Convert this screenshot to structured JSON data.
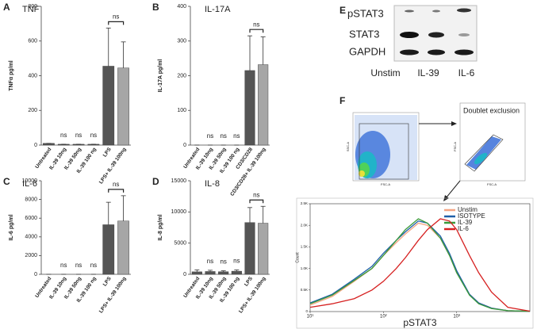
{
  "chart_data": [
    {
      "type": "bar",
      "panel": "A",
      "title": "TNF",
      "y_label": "TNFα pg/ml",
      "categories": [
        "Untreated",
        "IL-39 10ng",
        "IL-39 50ng",
        "IL-39 100 ng",
        "LPS",
        "LPS+ IL-39 100ng"
      ],
      "values": [
        10,
        5,
        5,
        5,
        455,
        445
      ],
      "errors": [
        0,
        0,
        0,
        0,
        220,
        150
      ],
      "colors": [
        "#555555",
        "#555555",
        "#555555",
        "#555555",
        "#555555",
        "#a6a6a6"
      ],
      "ylim": [
        0,
        800
      ],
      "yticks": [
        0,
        200,
        400,
        600,
        800
      ],
      "annotations": [
        {
          "text": "ns",
          "category": "IL-39 10ng"
        },
        {
          "text": "ns",
          "category": "IL-39 50ng"
        },
        {
          "text": "ns",
          "category": "IL-39 100 ng"
        },
        {
          "text": "ns",
          "between": [
            "LPS",
            "LPS+ IL-39 100ng"
          ]
        }
      ]
    },
    {
      "type": "bar",
      "panel": "B",
      "title": "IL-17A",
      "y_label": "IL-17A pg/ml",
      "categories": [
        "Untreated",
        "IL-39 10ng",
        "IL-39 50ng",
        "IL-39 100 ng",
        "CD3/CD28",
        "CD3/CD28+ IL-39 100ng"
      ],
      "values": [
        0,
        0,
        0,
        0,
        215,
        232
      ],
      "errors": [
        0,
        0,
        0,
        0,
        100,
        80
      ],
      "colors": [
        "#555555",
        "#555555",
        "#555555",
        "#555555",
        "#555555",
        "#a6a6a6"
      ],
      "ylim": [
        0,
        400
      ],
      "yticks": [
        0,
        100,
        200,
        300,
        400
      ],
      "annotations": [
        {
          "text": "ns",
          "category": "IL-39 10ng"
        },
        {
          "text": "ns",
          "category": "IL-39 50ng"
        },
        {
          "text": "ns",
          "category": "IL-39 100 ng"
        },
        {
          "text": "ns",
          "between": [
            "CD3/CD28",
            "CD3/CD28+ IL-39 100ng"
          ]
        }
      ]
    },
    {
      "type": "bar",
      "panel": "C",
      "title": "IL-6",
      "y_label": "IL-6 pg/ml",
      "categories": [
        "Untreated",
        "IL-39 10ng",
        "IL-39 50ng",
        "IL-39 100 ng",
        "LPS",
        "LPS+ IL-39 100ng"
      ],
      "values": [
        0,
        0,
        0,
        0,
        5300,
        5700
      ],
      "errors": [
        0,
        0,
        0,
        0,
        2400,
        2700
      ],
      "colors": [
        "#555555",
        "#555555",
        "#555555",
        "#555555",
        "#555555",
        "#a6a6a6"
      ],
      "ylim": [
        0,
        10000
      ],
      "yticks": [
        0,
        2000,
        4000,
        6000,
        8000,
        10000
      ],
      "annotations": [
        {
          "text": "ns",
          "category": "IL-39 10ng"
        },
        {
          "text": "ns",
          "category": "IL-39 50ng"
        },
        {
          "text": "ns",
          "category": "IL-39 100 ng"
        },
        {
          "text": "ns",
          "between": [
            "LPS",
            "LPS+ IL-39 100ng"
          ]
        }
      ]
    },
    {
      "type": "bar",
      "panel": "D",
      "title": "IL-8",
      "y_label": "IL-8 pg/ml",
      "categories": [
        "Untreated",
        "IL-39 10ng",
        "IL-39 50ng",
        "IL-39 100 ng",
        "LPS",
        "LPS+ IL-39 100ng"
      ],
      "values": [
        400,
        450,
        420,
        500,
        8300,
        8200
      ],
      "errors": [
        300,
        200,
        150,
        200,
        2400,
        2700
      ],
      "colors": [
        "#555555",
        "#555555",
        "#555555",
        "#555555",
        "#555555",
        "#a6a6a6"
      ],
      "ylim": [
        0,
        15000
      ],
      "yticks": [
        0,
        5000,
        10000,
        15000
      ],
      "annotations": [
        {
          "text": "ns",
          "category": "IL-39 10ng"
        },
        {
          "text": "ns",
          "category": "IL-39 50ng"
        },
        {
          "text": "ns",
          "category": "IL-39 100 ng"
        },
        {
          "text": "ns",
          "between": [
            "LPS",
            "LPS+ IL-39 100ng"
          ]
        }
      ]
    },
    {
      "type": "line",
      "x_label": "pSTAT3",
      "y_label": "Count",
      "log_x": true,
      "x": [
        10,
        20,
        40,
        70,
        100,
        150,
        200,
        300,
        400,
        600,
        800,
        1000,
        1500,
        2000,
        3000,
        5000,
        10000
      ],
      "series": [
        {
          "name": "Unstim",
          "color": "#f4a582",
          "values": [
            150,
            350,
            700,
            1000,
            1300,
            1600,
            1800,
            2050,
            2000,
            1700,
            1300,
            900,
            400,
            200,
            80,
            20,
            5
          ]
        },
        {
          "name": "ISOTYPE",
          "color": "#1f5fa8",
          "values": [
            200,
            400,
            750,
            1050,
            1350,
            1650,
            1850,
            2100,
            2050,
            1750,
            1350,
            950,
            400,
            200,
            80,
            20,
            5
          ]
        },
        {
          "name": "IL-39",
          "color": "#3a9a3a",
          "values": [
            180,
            380,
            720,
            1000,
            1300,
            1650,
            1900,
            2150,
            2050,
            1700,
            1300,
            900,
            380,
            180,
            70,
            20,
            5
          ]
        },
        {
          "name": "IL-6",
          "color": "#d62020",
          "values": [
            100,
            180,
            300,
            500,
            700,
            1000,
            1250,
            1650,
            1900,
            2150,
            2100,
            1900,
            1300,
            900,
            450,
            100,
            10
          ]
        }
      ],
      "xlim": [
        10,
        10000
      ],
      "xticks": [
        {
          "value": 10,
          "label": "10¹"
        },
        {
          "value": 100,
          "label": "10²"
        },
        {
          "value": 1000,
          "label": "10³"
        }
      ],
      "ylim": [
        0,
        2500
      ],
      "yticks": [
        0,
        {
          "value": 500,
          "label": "0.5K"
        },
        {
          "value": 1000,
          "label": "1.0K"
        },
        {
          "value": 1500,
          "label": "1.5K"
        },
        {
          "value": 2000,
          "label": "2.0K"
        },
        {
          "value": 2500,
          "label": "2.5K"
        }
      ]
    }
  ],
  "blot": {
    "label": "E",
    "rows": [
      "pSTAT3",
      "STAT3",
      "GAPDH"
    ],
    "lanes": [
      "Unstim",
      "IL-39",
      "IL-6"
    ]
  },
  "flow": {
    "label": "F",
    "plot1": {
      "x_label": "FSC-A",
      "y_label": "SSC-A"
    },
    "plot2": {
      "title": "Doublet exclusion",
      "x_label": "FSC-A",
      "y_label": "FSC-A"
    }
  }
}
